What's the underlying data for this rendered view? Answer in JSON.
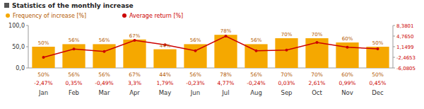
{
  "chart_data": {
    "type": "bar",
    "title": "Statistics of the monthly increase",
    "categories": [
      "Jan",
      "Feb",
      "Mar",
      "Apr",
      "May",
      "Jun",
      "Jul",
      "Aug",
      "Sep",
      "Oct",
      "Nov",
      "Dec"
    ],
    "series": [
      {
        "name": "Frequency of increase [%]",
        "type": "bar",
        "color": "#F5A800",
        "values": [
          50,
          56,
          56,
          67,
          44,
          56,
          78,
          56,
          70,
          70,
          60,
          50
        ],
        "value_labels": [
          "50%",
          "56%",
          "56%",
          "67%",
          "44%",
          "56%",
          "78%",
          "56%",
          "70%",
          "70%",
          "60%",
          "50%"
        ]
      },
      {
        "name": "Average return [%]",
        "type": "line",
        "axis": "y2",
        "color": "#CC0000",
        "marker": "circle",
        "values": [
          -2.47,
          0.35,
          -0.49,
          3.3,
          1.79,
          -0.23,
          4.77,
          -0.24,
          0.03,
          2.61,
          0.99,
          0.45
        ],
        "value_labels": [
          "-2,47%",
          "0,35%",
          "-0,49%",
          "3,3%",
          "1,79%",
          "-0,23%",
          "4,77%",
          "-0,24%",
          "0,03%",
          "2,61%",
          "0,99%",
          "0,45%"
        ]
      }
    ],
    "ylim": [
      0,
      100
    ],
    "yticks": [
      {
        "value": 0,
        "label": "0,0"
      },
      {
        "value": 50,
        "label": "50,0"
      },
      {
        "value": 100,
        "label": "100,0"
      }
    ],
    "y2lim": [
      -6.0805,
      8.3801
    ],
    "y2ticks": [
      {
        "value": -6.0805,
        "label": "-6,0805"
      },
      {
        "value": -2.4653,
        "label": "-2,4653"
      },
      {
        "value": 1.1499,
        "label": "1,1499"
      },
      {
        "value": 4.765,
        "label": "4,7650"
      },
      {
        "value": 8.3801,
        "label": "8,3801"
      }
    ],
    "grid": false,
    "legend": "top-left",
    "data_labels": true
  }
}
